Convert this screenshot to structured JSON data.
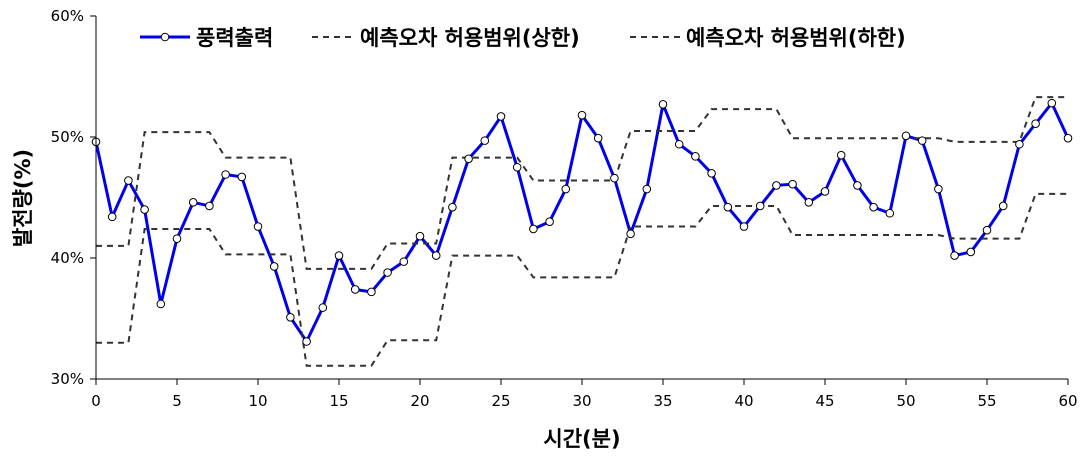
{
  "chart_data": {
    "type": "line",
    "title": "",
    "xlabel": "시간(분)",
    "ylabel": "발전량(%)",
    "xlim": [
      0,
      60
    ],
    "ylim": [
      30,
      60
    ],
    "x_ticks": [
      0,
      5,
      10,
      15,
      20,
      25,
      30,
      35,
      40,
      45,
      50,
      55,
      60
    ],
    "y_ticks": [
      30,
      40,
      50,
      60
    ],
    "y_tick_labels": [
      "30%",
      "40%",
      "50%",
      "60%"
    ],
    "grid": false,
    "legend_position": "top",
    "series": [
      {
        "name": "풍력출력",
        "color": "#0000ee",
        "style": "solid-with-markers",
        "x": [
          0,
          1,
          2,
          3,
          4,
          5,
          6,
          7,
          8,
          9,
          10,
          11,
          12,
          13,
          14,
          15,
          16,
          17,
          18,
          19,
          20,
          21,
          22,
          23,
          24,
          25,
          26,
          27,
          28,
          29,
          30,
          31,
          32,
          33,
          34,
          35,
          36,
          37,
          38,
          39,
          40,
          41,
          42,
          43,
          44,
          45,
          46,
          47,
          48,
          49,
          50,
          51,
          52,
          53,
          54,
          55,
          56,
          57,
          58,
          59,
          60
        ],
        "y": [
          49.6,
          43.4,
          46.4,
          44.0,
          36.2,
          41.6,
          44.6,
          44.3,
          46.9,
          46.7,
          42.6,
          39.3,
          35.1,
          33.1,
          35.9,
          40.2,
          37.4,
          37.2,
          38.8,
          39.7,
          41.8,
          40.2,
          44.2,
          48.2,
          49.7,
          51.7,
          47.5,
          42.4,
          43.0,
          45.7,
          51.8,
          49.9,
          46.6,
          42.0,
          45.7,
          52.7,
          49.4,
          48.4,
          47.0,
          44.2,
          42.6,
          44.3,
          46.0,
          46.1,
          44.6,
          45.5,
          48.5,
          46.0,
          44.2,
          43.7,
          50.1,
          49.7,
          45.7,
          40.2,
          40.5,
          42.3,
          44.3,
          49.4,
          51.1,
          52.8,
          49.9
        ]
      },
      {
        "name": "예측오차 허용범위(상한)",
        "color": "#333333",
        "style": "dashed",
        "x": [
          0,
          2,
          3,
          7,
          8,
          12,
          13,
          17,
          18,
          21,
          22,
          26,
          27,
          32,
          33,
          37,
          38,
          42,
          43,
          52,
          53,
          57,
          58,
          60
        ],
        "y": [
          41.0,
          41.0,
          50.4,
          50.4,
          48.3,
          48.3,
          39.1,
          39.1,
          41.2,
          41.2,
          48.3,
          48.3,
          46.4,
          46.4,
          50.5,
          50.5,
          52.3,
          52.3,
          49.9,
          49.9,
          49.6,
          49.6,
          53.3,
          53.3
        ]
      },
      {
        "name": "예측오차 허용범위(하한)",
        "color": "#333333",
        "style": "dashed",
        "x": [
          0,
          2,
          3,
          7,
          8,
          12,
          13,
          17,
          18,
          21,
          22,
          26,
          27,
          32,
          33,
          37,
          38,
          42,
          43,
          52,
          53,
          57,
          58,
          60
        ],
        "y": [
          33.0,
          33.0,
          42.4,
          42.4,
          40.3,
          40.3,
          31.1,
          31.1,
          33.2,
          33.2,
          40.2,
          40.2,
          38.4,
          38.4,
          42.6,
          42.6,
          44.3,
          44.3,
          41.9,
          41.9,
          41.6,
          41.6,
          45.3,
          45.3
        ]
      }
    ]
  }
}
